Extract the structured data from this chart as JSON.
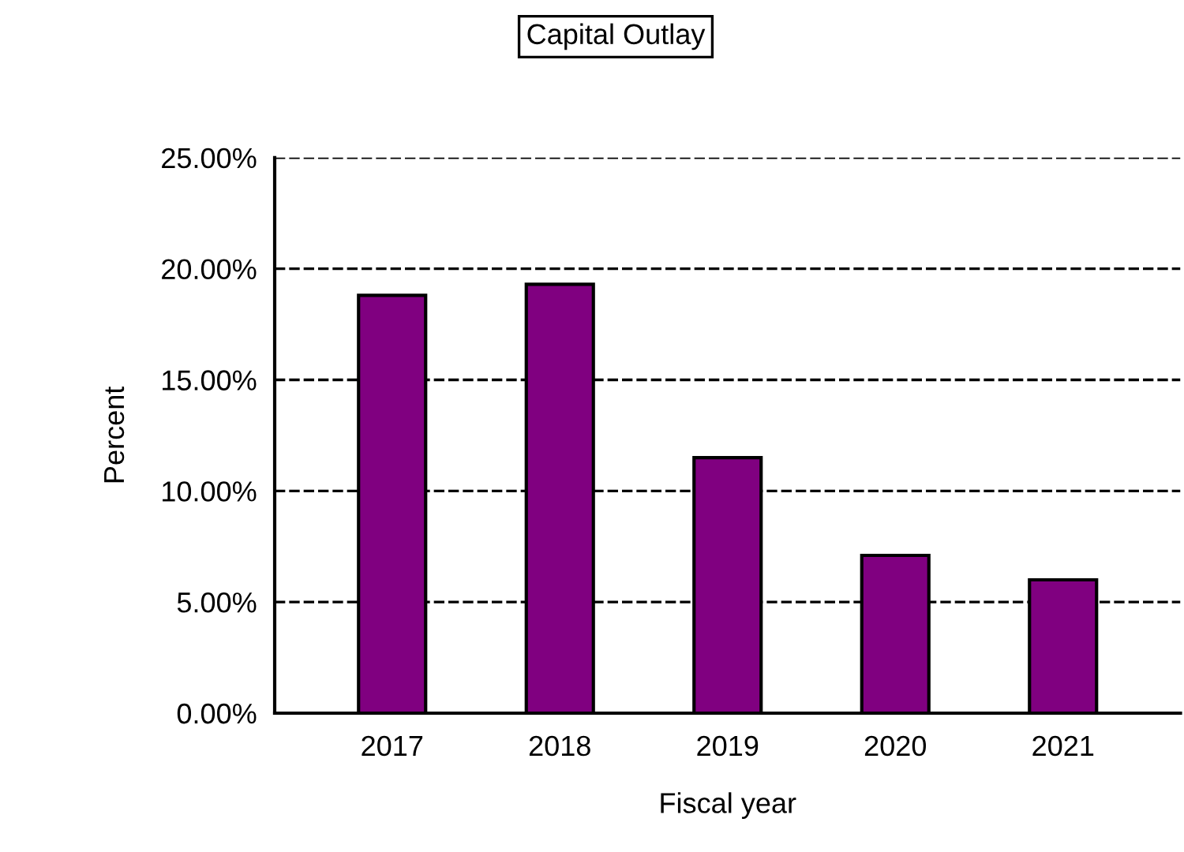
{
  "chart_data": {
    "type": "bar",
    "title": "Capital Outlay",
    "xlabel": "Fiscal year",
    "ylabel": "Percent",
    "categories": [
      "2017",
      "2018",
      "2019",
      "2020",
      "2021"
    ],
    "values": [
      18.8,
      19.3,
      11.5,
      7.1,
      6.0
    ],
    "color": "#800080",
    "ylim": [
      0,
      25
    ],
    "yticks": [
      {
        "value": 0,
        "label": "0.00%"
      },
      {
        "value": 5,
        "label": "5.00%"
      },
      {
        "value": 10,
        "label": "10.00%"
      },
      {
        "value": 15,
        "label": "15.00%"
      },
      {
        "value": 20,
        "label": "20.00%"
      },
      {
        "value": 25,
        "label": "25.00%"
      }
    ],
    "grid": "y",
    "line_style": "dashed"
  }
}
